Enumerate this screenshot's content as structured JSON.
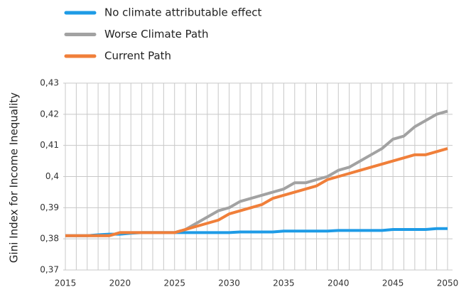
{
  "chart_data": {
    "type": "line",
    "y_label": "Gini Index for Income Inequality",
    "x": [
      2015,
      2016,
      2017,
      2018,
      2019,
      2020,
      2021,
      2022,
      2023,
      2024,
      2025,
      2026,
      2027,
      2028,
      2029,
      2030,
      2031,
      2032,
      2033,
      2034,
      2035,
      2036,
      2037,
      2038,
      2039,
      2040,
      2041,
      2042,
      2043,
      2044,
      2045,
      2046,
      2047,
      2048,
      2049,
      2050
    ],
    "series": [
      {
        "name": "No climate attributable effect",
        "color": "#1e9be6",
        "values": [
          0.381,
          0.381,
          0.381,
          0.3813,
          0.3815,
          0.3815,
          0.3818,
          0.382,
          0.382,
          0.382,
          0.382,
          0.382,
          0.382,
          0.382,
          0.382,
          0.382,
          0.3822,
          0.3822,
          0.3822,
          0.3822,
          0.3825,
          0.3825,
          0.3825,
          0.3825,
          0.3825,
          0.3827,
          0.3827,
          0.3827,
          0.3827,
          0.3827,
          0.383,
          0.383,
          0.383,
          0.383,
          0.3833,
          0.3833
        ]
      },
      {
        "name": "Worse Climate Path",
        "color": "#a2a2a2",
        "values": [
          0.381,
          0.381,
          0.381,
          0.381,
          0.381,
          0.382,
          0.382,
          0.382,
          0.382,
          0.382,
          0.382,
          0.383,
          0.385,
          0.387,
          0.389,
          0.39,
          0.392,
          0.393,
          0.394,
          0.395,
          0.396,
          0.398,
          0.398,
          0.399,
          0.4,
          0.402,
          0.403,
          0.405,
          0.407,
          0.409,
          0.412,
          0.413,
          0.416,
          0.418,
          0.42,
          0.421
        ]
      },
      {
        "name": "Current Path",
        "color": "#f07f3a",
        "values": [
          0.381,
          0.381,
          0.381,
          0.381,
          0.381,
          0.382,
          0.382,
          0.382,
          0.382,
          0.382,
          0.382,
          0.383,
          0.384,
          0.385,
          0.386,
          0.388,
          0.389,
          0.39,
          0.391,
          0.393,
          0.394,
          0.395,
          0.396,
          0.397,
          0.399,
          0.4,
          0.401,
          0.402,
          0.403,
          0.404,
          0.405,
          0.406,
          0.407,
          0.407,
          0.408,
          0.409
        ]
      }
    ],
    "xlim": [
      2015,
      2050
    ],
    "xticks": [
      2015,
      2020,
      2025,
      2030,
      2035,
      2040,
      2045,
      2050
    ],
    "x_grid": [
      2015,
      2016,
      2017,
      2018,
      2019,
      2020,
      2021,
      2022,
      2023,
      2024,
      2025,
      2026,
      2027,
      2028,
      2029,
      2030,
      2031,
      2032,
      2033,
      2034,
      2035,
      2036,
      2037,
      2038,
      2039,
      2040,
      2041,
      2042,
      2043,
      2044,
      2045,
      2046,
      2047,
      2048,
      2049,
      2050
    ],
    "ylim": [
      0.37,
      0.43
    ],
    "yticks": [
      {
        "value": 0.37,
        "label": "0,37"
      },
      {
        "value": 0.38,
        "label": "0,38"
      },
      {
        "value": 0.39,
        "label": "0,39"
      },
      {
        "value": 0.4,
        "label": "0,4"
      },
      {
        "value": 0.41,
        "label": "0,41"
      },
      {
        "value": 0.42,
        "label": "0,42"
      },
      {
        "value": 0.43,
        "label": "0,43"
      }
    ],
    "grid": true,
    "legend": "top-left"
  }
}
